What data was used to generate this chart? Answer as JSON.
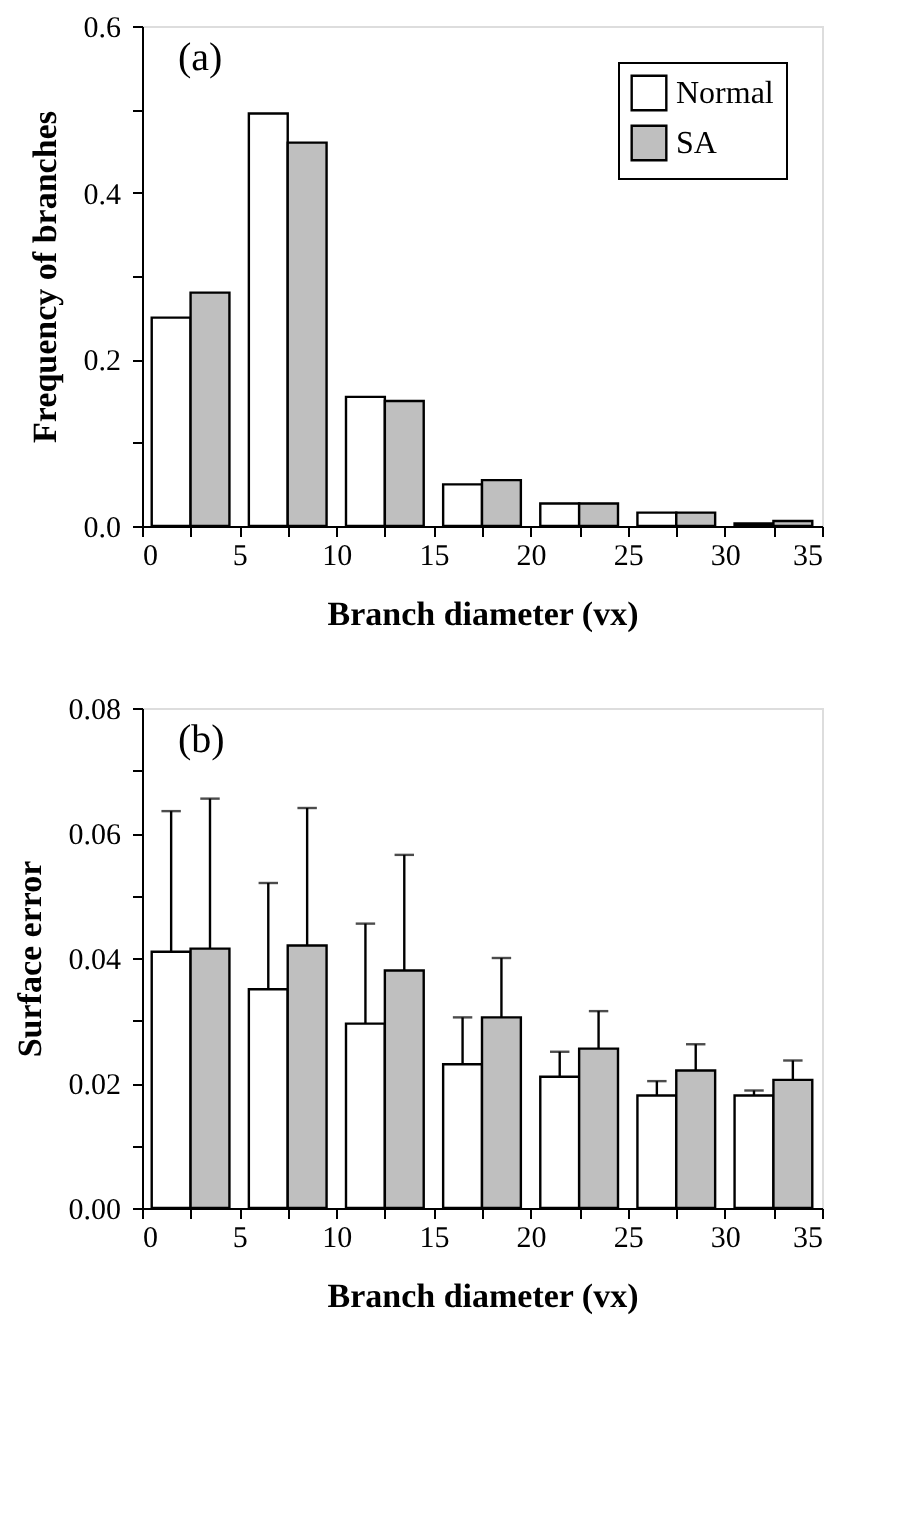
{
  "chart_data": [
    {
      "type": "bar",
      "xlabel": "Branch diameter (vx)",
      "ylabel": "Frequency of branches",
      "annotations": [
        "(a)"
      ],
      "xlim": [
        0,
        35
      ],
      "xticks": [
        0,
        {
          "value": 2.5,
          "label": null
        },
        5,
        {
          "value": 7.5,
          "label": null
        },
        10,
        {
          "value": 12.5,
          "label": null
        },
        15,
        {
          "value": 17.5,
          "label": null
        },
        20,
        {
          "value": 22.5,
          "label": null
        },
        25,
        {
          "value": 27.5,
          "label": null
        },
        30,
        {
          "value": 32.5,
          "label": null
        },
        35
      ],
      "ylim": [
        0,
        0.6
      ],
      "yticks": [
        {
          "value": 0,
          "label": "0.0"
        },
        {
          "value": 0.1,
          "label": null
        },
        0.2,
        {
          "value": 0.3,
          "label": null
        },
        0.4,
        {
          "value": 0.5,
          "label": null
        },
        0.6
      ],
      "grid": false,
      "legend": "top right",
      "series": [
        {
          "name": "Normal",
          "color": "#ffffff",
          "x": [
            1.5,
            6.5,
            11.5,
            16.5,
            21.5,
            26.5,
            31.5
          ],
          "values": [
            0.25,
            0.495,
            0.155,
            0.05,
            0.027,
            0.016,
            0.003
          ]
        },
        {
          "name": "SA",
          "color": "#bfbfbf",
          "x": [
            3.5,
            8.5,
            13.5,
            18.5,
            23.5,
            28.5,
            33.5
          ],
          "values": [
            0.28,
            0.46,
            0.15,
            0.055,
            0.027,
            0.016,
            0.006
          ]
        }
      ]
    },
    {
      "type": "bar",
      "xlabel": "Branch diameter (vx)",
      "ylabel": "Surface error",
      "annotations": [
        "(b)"
      ],
      "xlim": [
        0,
        35
      ],
      "xticks": [
        0,
        {
          "value": 2.5,
          "label": null
        },
        5,
        {
          "value": 7.5,
          "label": null
        },
        10,
        {
          "value": 12.5,
          "label": null
        },
        15,
        {
          "value": 17.5,
          "label": null
        },
        20,
        {
          "value": 22.5,
          "label": null
        },
        25,
        {
          "value": 27.5,
          "label": null
        },
        30,
        {
          "value": 32.5,
          "label": null
        },
        35
      ],
      "ylim": [
        0,
        0.08
      ],
      "yticks": [
        {
          "value": 0,
          "label": "0.00"
        },
        {
          "value": 0.01,
          "label": null
        },
        0.02,
        {
          "value": 0.03,
          "label": null
        },
        0.04,
        {
          "value": 0.05,
          "label": null
        },
        0.06,
        {
          "value": 0.07,
          "label": null
        },
        0.08
      ],
      "grid": false,
      "legend": "top right",
      "series": [
        {
          "name": "Normal",
          "color": "#ffffff",
          "x": [
            1.5,
            6.5,
            11.5,
            16.5,
            21.5,
            26.5,
            31.5
          ],
          "values": [
            0.041,
            0.035,
            0.0295,
            0.023,
            0.021,
            0.018,
            0.018
          ],
          "errors": [
            [
              0.041,
              0.0635
            ],
            [
              0.035,
              0.052
            ],
            [
              0.0295,
              0.0455
            ],
            [
              0.023,
              0.0305
            ],
            [
              0.021,
              0.025
            ],
            [
              0.018,
              0.0203
            ],
            [
              0.018,
              0.0188
            ]
          ]
        },
        {
          "name": "SA",
          "color": "#bfbfbf",
          "x": [
            3.5,
            8.5,
            13.5,
            18.5,
            23.5,
            28.5,
            33.5
          ],
          "values": [
            0.0415,
            0.042,
            0.038,
            0.0305,
            0.0255,
            0.022,
            0.0205
          ],
          "errors": [
            [
              0.0415,
              0.0655
            ],
            [
              0.042,
              0.064
            ],
            [
              0.038,
              0.0565
            ],
            [
              0.0305,
              0.04
            ],
            [
              0.0255,
              0.0315
            ],
            [
              0.022,
              0.0262
            ],
            [
              0.0205,
              0.0236
            ]
          ]
        }
      ]
    }
  ]
}
